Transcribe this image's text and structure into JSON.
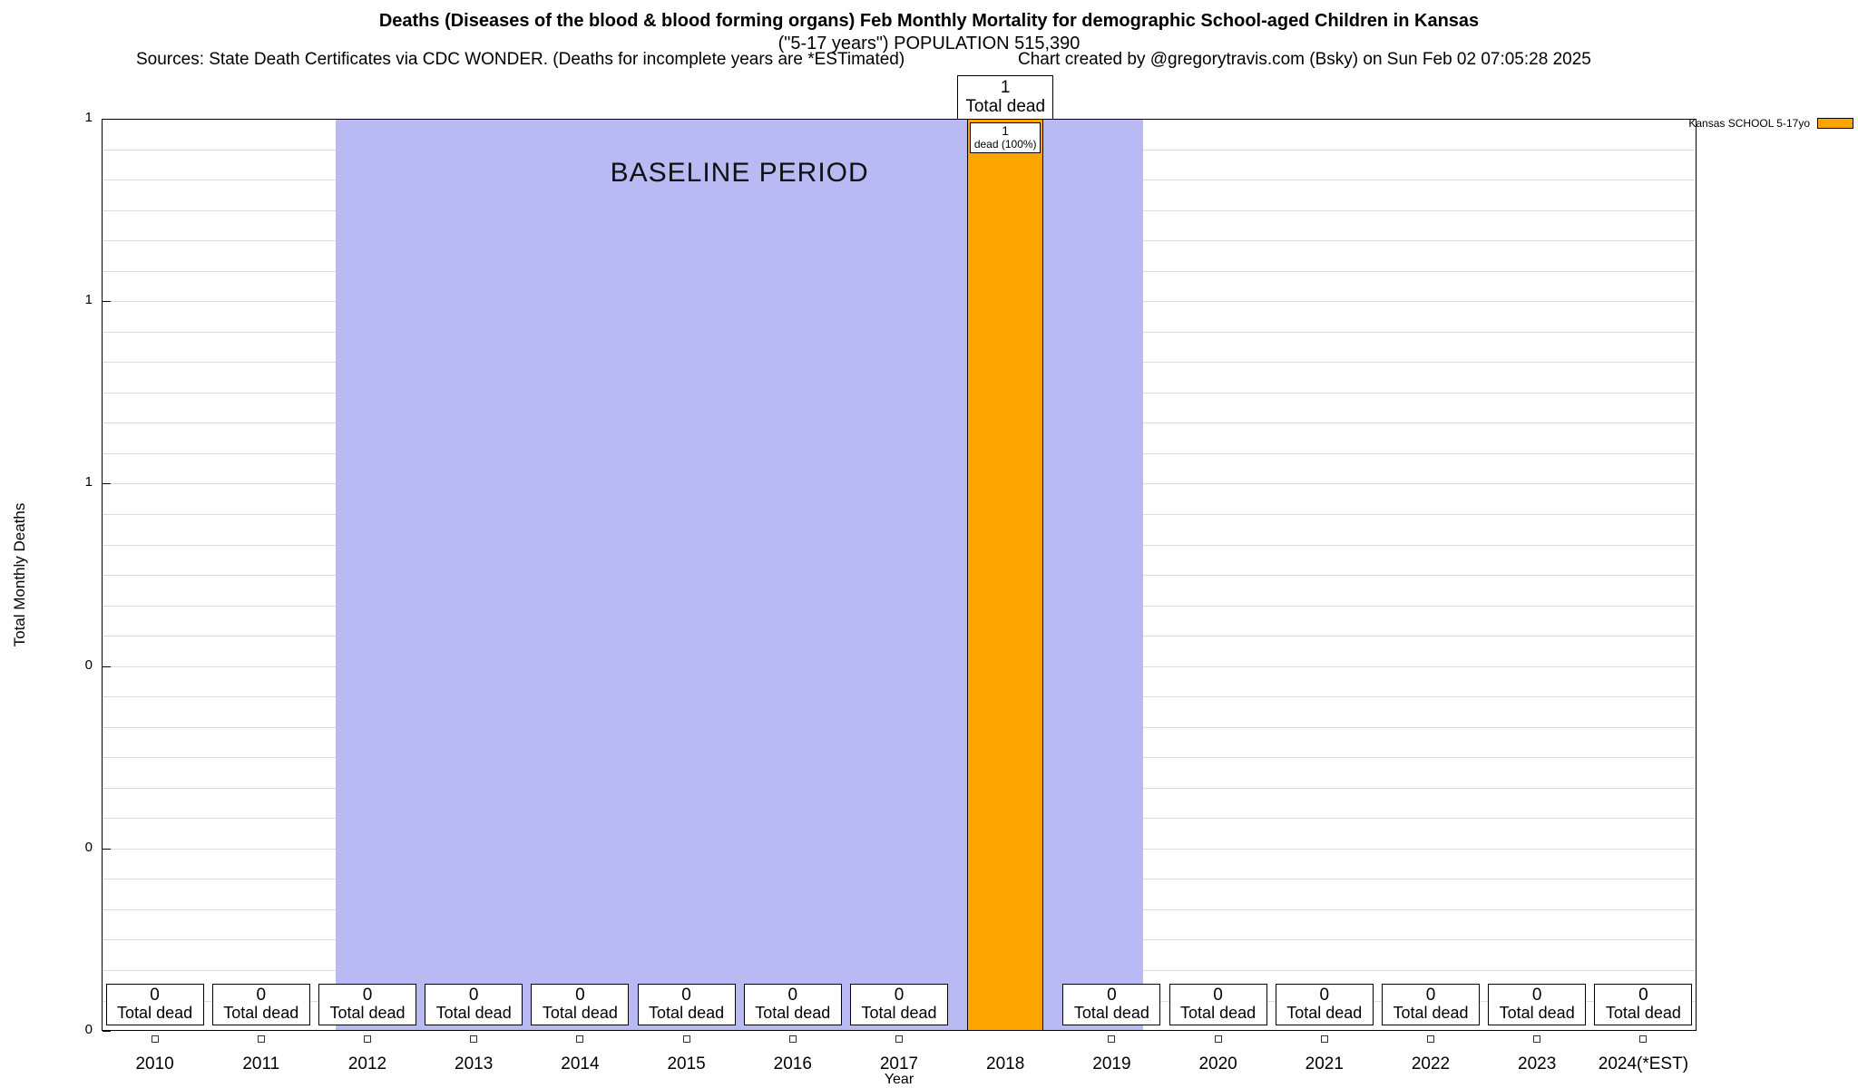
{
  "header": {
    "title_line1": "Deaths (Diseases of the blood & blood forming organs) Feb Monthly Mortality for demographic School-aged Children in Kansas",
    "title_line2": "(\"5-17 years\") POPULATION 515,390",
    "sources": "Sources: State Death Certificates via CDC WONDER. (Deaths for incomplete years are *ESTimated)",
    "credit": "Chart created by @gregorytravis.com (Bsky) on Sun Feb 02 07:05:28 2025"
  },
  "chart_data": {
    "type": "bar",
    "title": "Deaths (Diseases of the blood & blood forming organs) Feb Monthly Mortality for demographic School-aged Children in Kansas (\"5-17 years\") POPULATION 515,390",
    "xlabel": "Year",
    "ylabel": "Total Monthly Deaths",
    "ylim": [
      0,
      1
    ],
    "y_tick_labels_top_to_bottom": [
      "1",
      "1",
      "1",
      "0",
      "0",
      "0"
    ],
    "categories": [
      "2010",
      "2011",
      "2012",
      "2013",
      "2014",
      "2015",
      "2016",
      "2017",
      "2018",
      "2019",
      "2020",
      "2021",
      "2022",
      "2023",
      "2024(*EST)"
    ],
    "values": [
      0,
      0,
      0,
      0,
      0,
      0,
      0,
      0,
      1,
      0,
      0,
      0,
      0,
      0,
      0
    ],
    "series_name": "Kansas SCHOOL 5-17yo",
    "bar_color": "#FFA500",
    "baseline_region": {
      "label": "BASELINE PERIOD",
      "start_year": "2012",
      "end_year": "2019",
      "color": "#b9b9f3"
    },
    "annotations": {
      "total_box": {
        "value": "1",
        "label": "Total dead"
      },
      "inbar_box": {
        "value": "1",
        "label": "dead (100%)"
      },
      "zero_box": {
        "value": "0",
        "label": "Total dead"
      }
    },
    "legend": {
      "label": "Kansas SCHOOL 5-17yo",
      "color": "#FFA500",
      "position": "top-right"
    },
    "grid": "on"
  }
}
